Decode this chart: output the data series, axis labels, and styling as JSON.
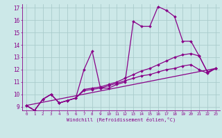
{
  "xlabel": "Windchill (Refroidissement éolien,°C)",
  "bg_color": "#cce8e8",
  "line_color": "#880088",
  "grid_color": "#aacccc",
  "xmin": 0,
  "xmax": 23,
  "ymin": 9,
  "ymax": 17,
  "line1_x": [
    0,
    1,
    2,
    3,
    4,
    5,
    6,
    7,
    8,
    9,
    10,
    11,
    12,
    13,
    14,
    15,
    16,
    17,
    18,
    19,
    20,
    21,
    22,
    23
  ],
  "line1_y": [
    9.1,
    8.7,
    9.6,
    10.0,
    9.3,
    9.5,
    9.7,
    12.0,
    13.5,
    10.5,
    10.5,
    10.8,
    11.0,
    15.9,
    15.5,
    15.5,
    17.1,
    16.8,
    16.3,
    14.3,
    14.3,
    13.1,
    11.8,
    12.1
  ],
  "line2_x": [
    0,
    1,
    2,
    3,
    4,
    5,
    6,
    7,
    8,
    9,
    10,
    11,
    12,
    13,
    14,
    15,
    16,
    17,
    18,
    19,
    20,
    21,
    22,
    23
  ],
  "line2_y": [
    9.1,
    8.7,
    9.6,
    10.0,
    9.3,
    9.5,
    9.7,
    10.4,
    10.5,
    10.6,
    10.8,
    11.0,
    11.3,
    11.6,
    11.9,
    12.1,
    12.4,
    12.7,
    13.0,
    13.2,
    13.3,
    13.1,
    11.8,
    12.1
  ],
  "line3_x": [
    0,
    1,
    2,
    3,
    4,
    5,
    6,
    7,
    8,
    9,
    10,
    11,
    12,
    13,
    14,
    15,
    16,
    17,
    18,
    19,
    20,
    21,
    22,
    23
  ],
  "line3_y": [
    9.1,
    8.7,
    9.6,
    10.0,
    9.3,
    9.5,
    9.7,
    10.3,
    10.4,
    10.5,
    10.7,
    10.9,
    11.1,
    11.3,
    11.5,
    11.6,
    11.8,
    12.0,
    12.1,
    12.3,
    12.4,
    12.0,
    11.7,
    12.1
  ],
  "line4_x": [
    0,
    23
  ],
  "line4_y": [
    9.1,
    12.1
  ]
}
